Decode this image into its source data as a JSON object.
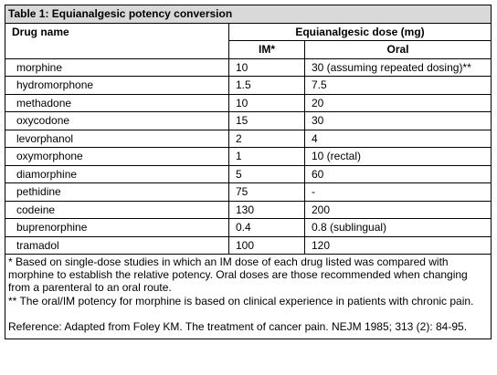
{
  "table": {
    "title": "Table 1: Equianalgesic potency conversion",
    "header": {
      "drug": "Drug name",
      "dose": "Equianalgesic dose (mg)",
      "im": "IM*",
      "oral": "Oral"
    },
    "rows": [
      [
        "morphine",
        "10",
        "30 (assuming repeated dosing)**"
      ],
      [
        "hydromorphone",
        "1.5",
        "7.5"
      ],
      [
        "methadone",
        "10",
        "20"
      ],
      [
        "oxycodone",
        "15",
        "30"
      ],
      [
        "levorphanol",
        "2",
        "4"
      ],
      [
        "oxymorphone",
        "1",
        "10 (rectal)"
      ],
      [
        "diamorphine",
        "5",
        "60"
      ],
      [
        "pethidine",
        "75",
        "-"
      ],
      [
        "codeine",
        "130",
        "200"
      ],
      [
        "buprenorphine",
        "0.4",
        "0.8 (sublingual)"
      ],
      [
        "tramadol",
        "100",
        "120"
      ]
    ],
    "footnotes": [
      "* Based on single-dose studies in which an IM dose of each drug listed was compared with morphine to establish the relative potency. Oral doses are those recommended when changing from a parenteral to an oral route.",
      "** The oral/IM potency for morphine is based on clinical experience in patients with chronic pain.",
      "Reference: Adapted from Foley KM. The treatment of cancer pain. NEJM 1985; 313 (2): 84-95."
    ]
  }
}
